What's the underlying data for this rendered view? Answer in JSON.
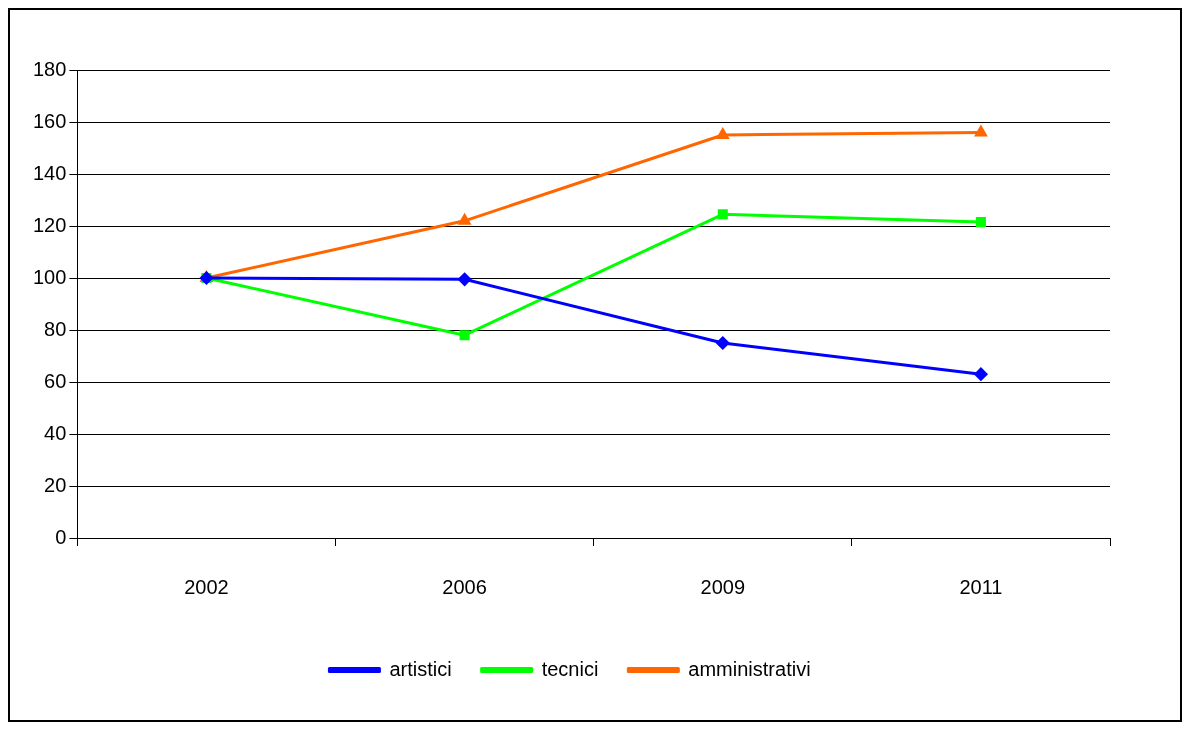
{
  "chart_data": {
    "type": "line",
    "categories": [
      "2002",
      "2006",
      "2009",
      "2011"
    ],
    "series": [
      {
        "name": "artistici",
        "color": "#0000ff",
        "marker": "diamond",
        "values": [
          100,
          99.5,
          75,
          63
        ]
      },
      {
        "name": "tecnici",
        "color": "#00ff00",
        "marker": "square",
        "values": [
          100,
          78,
          124.5,
          121.5
        ]
      },
      {
        "name": "amministrativi",
        "color": "#ff6600",
        "marker": "triangle",
        "values": [
          100,
          122,
          155,
          156
        ]
      }
    ],
    "ylim": [
      0,
      180
    ],
    "yticks": [
      0,
      20,
      40,
      60,
      80,
      100,
      120,
      140,
      160,
      180
    ],
    "grid": "y",
    "legend": "bottom"
  }
}
